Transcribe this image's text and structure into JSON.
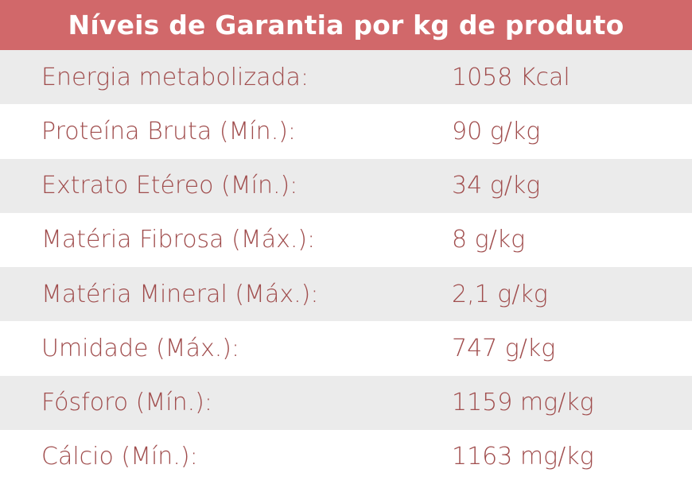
{
  "table": {
    "title": "Níveis de Garantia por kg de produto",
    "rows": [
      {
        "label": "Energia metabolizada:",
        "value": "1058 Kcal"
      },
      {
        "label": "Proteína Bruta (Mín.):",
        "value": "90 g/kg"
      },
      {
        "label": "Extrato Etéreo (Mín.):",
        "value": "34 g/kg"
      },
      {
        "label": "Matéria Fibrosa (Máx.):",
        "value": "8 g/kg"
      },
      {
        "label": "Matéria Mineral (Máx.):",
        "value": "2,1 g/kg"
      },
      {
        "label": "Umidade (Máx.):",
        "value": "747 g/kg"
      },
      {
        "label": "Fósforo (Mín.):",
        "value": "1159 mg/kg"
      },
      {
        "label": "Cálcio (Mín.):",
        "value": "1163 mg/kg"
      }
    ]
  },
  "colors": {
    "header_background": "#d1686a",
    "header_text": "#ffffff",
    "row_shaded": "#ebebeb",
    "row_white": "#ffffff",
    "row_text": "#a04d4d"
  }
}
